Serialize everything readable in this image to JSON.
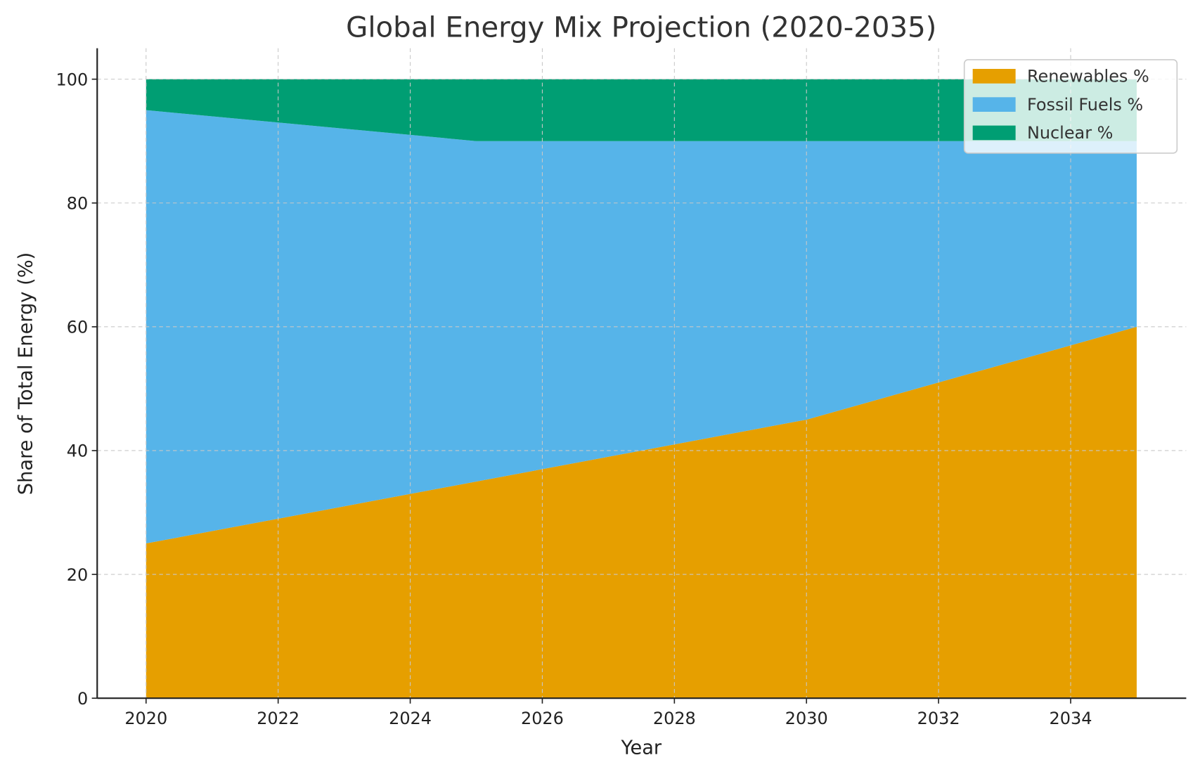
{
  "chart_data": {
    "type": "area",
    "stacked": true,
    "title": "Global Energy Mix Projection (2020-2035)",
    "xlabel": "Year",
    "ylabel": "Share of Total Energy (%)",
    "x": [
      2020,
      2025,
      2030,
      2035
    ],
    "series": [
      {
        "name": "Renewables %",
        "color": "#E69F00",
        "values": [
          25,
          35,
          45,
          60
        ]
      },
      {
        "name": "Fossil Fuels %",
        "color": "#56B4E9",
        "values": [
          70,
          55,
          45,
          30
        ]
      },
      {
        "name": "Nuclear %",
        "color": "#009E73",
        "values": [
          5,
          10,
          10,
          10
        ]
      }
    ],
    "xticks": [
      "2020",
      "2022",
      "2024",
      "2026",
      "2028",
      "2030",
      "2032",
      "2034"
    ],
    "yticks": [
      "0",
      "20",
      "40",
      "60",
      "80",
      "100"
    ],
    "xlim": [
      2019.26,
      2035.75
    ],
    "ylim": [
      0,
      105
    ],
    "grid": true,
    "legend_position": "top-right"
  }
}
